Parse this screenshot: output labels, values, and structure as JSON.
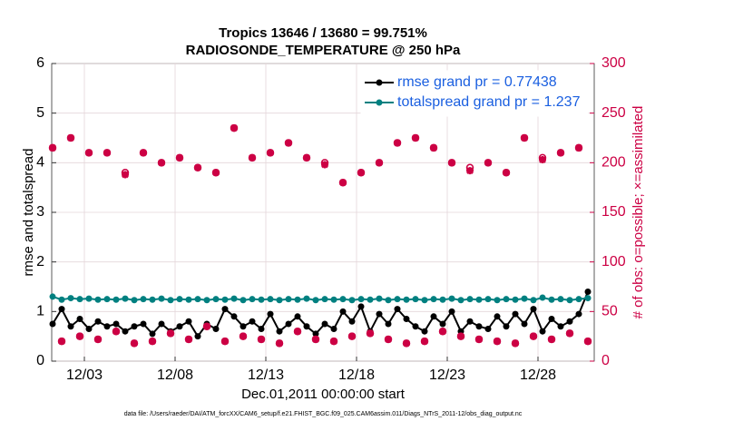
{
  "chart_data": {
    "type": "line",
    "title": "Tropics 13646 / 13680 = 99.751%",
    "subtitle": "RADIOSONDE_TEMPERATURE @ 250 hPa",
    "x_label": "Dec.01,2011 00:00:00 start",
    "y_label": "rmse and totalspread",
    "y2_label": "# of obs: o=possible; ×=assimilated",
    "footnote": "data file: /Users/raeder/DAI/ATM_forcXX/CAM6_setup/f.e21.FHIST_BGC.f09_025.CAM6assim.011/Diags_NTrS_2011-12/obs_diag_output.nc",
    "legend": "upper right",
    "grid": true,
    "xlim": [
      1.2,
      31.1
    ],
    "xticks": [
      {
        "value": 3,
        "label": "12/03"
      },
      {
        "value": 8,
        "label": "12/08"
      },
      {
        "value": 13,
        "label": "12/13"
      },
      {
        "value": 18,
        "label": "12/18"
      },
      {
        "value": 23,
        "label": "12/23"
      },
      {
        "value": 28,
        "label": "12/28"
      }
    ],
    "ylim": [
      0,
      6
    ],
    "yticks": [
      0,
      1,
      2,
      3,
      4,
      5,
      6
    ],
    "y2lim": [
      0,
      300
    ],
    "y2ticks": [
      0,
      50,
      100,
      150,
      200,
      250,
      300
    ],
    "x": [
      1.25,
      1.75,
      2.25,
      2.75,
      3.25,
      3.75,
      4.25,
      4.75,
      5.25,
      5.75,
      6.25,
      6.75,
      7.25,
      7.75,
      8.25,
      8.75,
      9.25,
      9.75,
      10.25,
      10.75,
      11.25,
      11.75,
      12.25,
      12.75,
      13.25,
      13.75,
      14.25,
      14.75,
      15.25,
      15.75,
      16.25,
      16.75,
      17.25,
      17.75,
      18.25,
      18.75,
      19.25,
      19.75,
      20.25,
      20.75,
      21.25,
      21.75,
      22.25,
      22.75,
      23.25,
      23.75,
      24.25,
      24.75,
      25.25,
      25.75,
      26.25,
      26.75,
      27.25,
      27.75,
      28.25,
      28.75,
      29.25,
      29.75,
      30.25,
      30.75
    ],
    "series": [
      {
        "name": "rmse grand pr = 0.77438",
        "color": "#000000",
        "marker": "dot",
        "values": [
          0.75,
          1.05,
          0.7,
          0.85,
          0.65,
          0.8,
          0.7,
          0.75,
          0.6,
          0.7,
          0.75,
          0.55,
          0.75,
          0.6,
          0.7,
          0.8,
          0.5,
          0.75,
          0.65,
          1.05,
          0.9,
          0.7,
          0.8,
          0.65,
          0.95,
          0.6,
          0.75,
          0.9,
          0.7,
          0.55,
          0.75,
          0.65,
          1.0,
          0.8,
          1.1,
          0.6,
          0.95,
          0.75,
          1.05,
          0.85,
          0.7,
          0.6,
          0.9,
          0.75,
          1.0,
          0.6,
          0.8,
          0.7,
          0.65,
          0.9,
          0.7,
          0.95,
          0.75,
          1.05,
          0.6,
          0.85,
          0.7,
          0.8,
          0.95,
          1.4
        ]
      },
      {
        "name": "totalspread grand pr = 1.237",
        "color": "#008080",
        "marker": "dot",
        "values": [
          1.3,
          1.24,
          1.27,
          1.25,
          1.26,
          1.24,
          1.25,
          1.24,
          1.26,
          1.23,
          1.25,
          1.24,
          1.26,
          1.23,
          1.25,
          1.24,
          1.25,
          1.23,
          1.25,
          1.24,
          1.26,
          1.23,
          1.25,
          1.24,
          1.25,
          1.23,
          1.25,
          1.24,
          1.26,
          1.23,
          1.25,
          1.24,
          1.25,
          1.23,
          1.25,
          1.24,
          1.26,
          1.23,
          1.25,
          1.24,
          1.25,
          1.23,
          1.25,
          1.24,
          1.26,
          1.23,
          1.25,
          1.24,
          1.25,
          1.23,
          1.25,
          1.24,
          1.26,
          1.23,
          1.28,
          1.24,
          1.25,
          1.23,
          1.25,
          1.27
        ]
      },
      {
        "color": "#cc0044",
        "marker": "circle",
        "axis": "y2",
        "values": [
          215,
          20,
          225,
          25,
          210,
          22,
          210,
          30,
          190,
          18,
          210,
          20,
          200,
          28,
          205,
          22,
          195,
          35,
          190,
          20,
          235,
          25,
          205,
          22,
          210,
          18,
          220,
          30,
          205,
          22,
          200,
          20,
          180,
          25,
          190,
          28,
          200,
          22,
          220,
          18,
          225,
          20,
          215,
          30,
          200,
          25,
          195,
          22,
          200,
          20,
          190,
          18,
          225,
          25,
          205,
          22,
          210,
          28,
          215,
          20
        ]
      },
      {
        "color": "#cc0044",
        "marker": "star",
        "axis": "y2",
        "values": [
          215,
          20,
          225,
          25,
          210,
          22,
          210,
          30,
          188,
          18,
          210,
          20,
          200,
          28,
          205,
          22,
          195,
          35,
          190,
          20,
          235,
          25,
          205,
          22,
          210,
          18,
          220,
          30,
          205,
          22,
          198,
          20,
          180,
          25,
          190,
          28,
          200,
          22,
          220,
          18,
          225,
          20,
          215,
          30,
          200,
          25,
          192,
          22,
          200,
          20,
          190,
          18,
          225,
          25,
          203,
          22,
          210,
          28,
          215,
          20
        ]
      }
    ]
  }
}
